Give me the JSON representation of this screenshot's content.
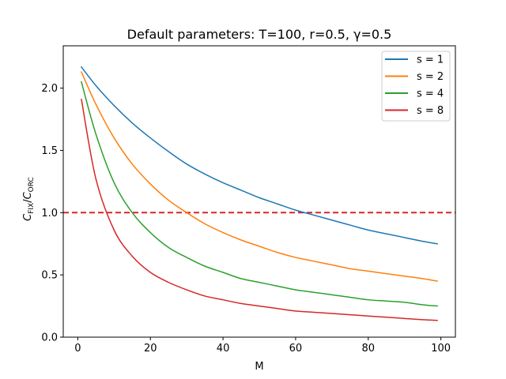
{
  "chart_data": {
    "type": "line",
    "title": "Default parameters: T=100, r=0.5, γ=0.5",
    "xlabel": "M",
    "ylabel": {
      "base_c1": "C",
      "sub1": "FIX",
      "slash": "/",
      "base_c2": "C",
      "sub2": "ORC"
    },
    "xlim": [
      -4,
      104
    ],
    "ylim": [
      0,
      2.34
    ],
    "xticks": [
      0,
      20,
      40,
      60,
      80,
      100
    ],
    "xtick_labels": [
      "0",
      "20",
      "40",
      "60",
      "80",
      "100"
    ],
    "yticks": [
      0.0,
      0.5,
      1.0,
      1.5,
      2.0
    ],
    "ytick_labels": [
      "0.0",
      "0.5",
      "1.0",
      "1.5",
      "2.0"
    ],
    "grid": false,
    "legend_position": "top-right",
    "reference_line": {
      "y": 1.0,
      "color": "#d62728",
      "style": "dashed"
    },
    "x": [
      1,
      5,
      10,
      15,
      20,
      25,
      30,
      35,
      40,
      45,
      50,
      55,
      60,
      65,
      70,
      75,
      80,
      85,
      90,
      95,
      99
    ],
    "series": [
      {
        "name": "s = 1",
        "color": "#1f77b4",
        "values": [
          2.17,
          2.02,
          1.86,
          1.72,
          1.6,
          1.49,
          1.39,
          1.31,
          1.24,
          1.18,
          1.12,
          1.07,
          1.02,
          0.98,
          0.94,
          0.9,
          0.86,
          0.83,
          0.8,
          0.77,
          0.75
        ]
      },
      {
        "name": "s = 2",
        "color": "#ff7f0e",
        "values": [
          2.13,
          1.87,
          1.6,
          1.39,
          1.23,
          1.1,
          1.0,
          0.91,
          0.84,
          0.78,
          0.73,
          0.68,
          0.64,
          0.61,
          0.58,
          0.55,
          0.53,
          0.51,
          0.49,
          0.47,
          0.45
        ]
      },
      {
        "name": "s = 4",
        "color": "#2ca02c",
        "values": [
          2.05,
          1.63,
          1.24,
          1.0,
          0.84,
          0.72,
          0.64,
          0.57,
          0.52,
          0.47,
          0.44,
          0.41,
          0.38,
          0.36,
          0.34,
          0.32,
          0.3,
          0.29,
          0.28,
          0.26,
          0.25
        ]
      },
      {
        "name": "s = 8",
        "color": "#d62728",
        "values": [
          1.91,
          1.27,
          0.86,
          0.65,
          0.52,
          0.44,
          0.38,
          0.33,
          0.3,
          0.27,
          0.25,
          0.23,
          0.21,
          0.2,
          0.19,
          0.18,
          0.17,
          0.16,
          0.15,
          0.14,
          0.135
        ]
      }
    ]
  }
}
